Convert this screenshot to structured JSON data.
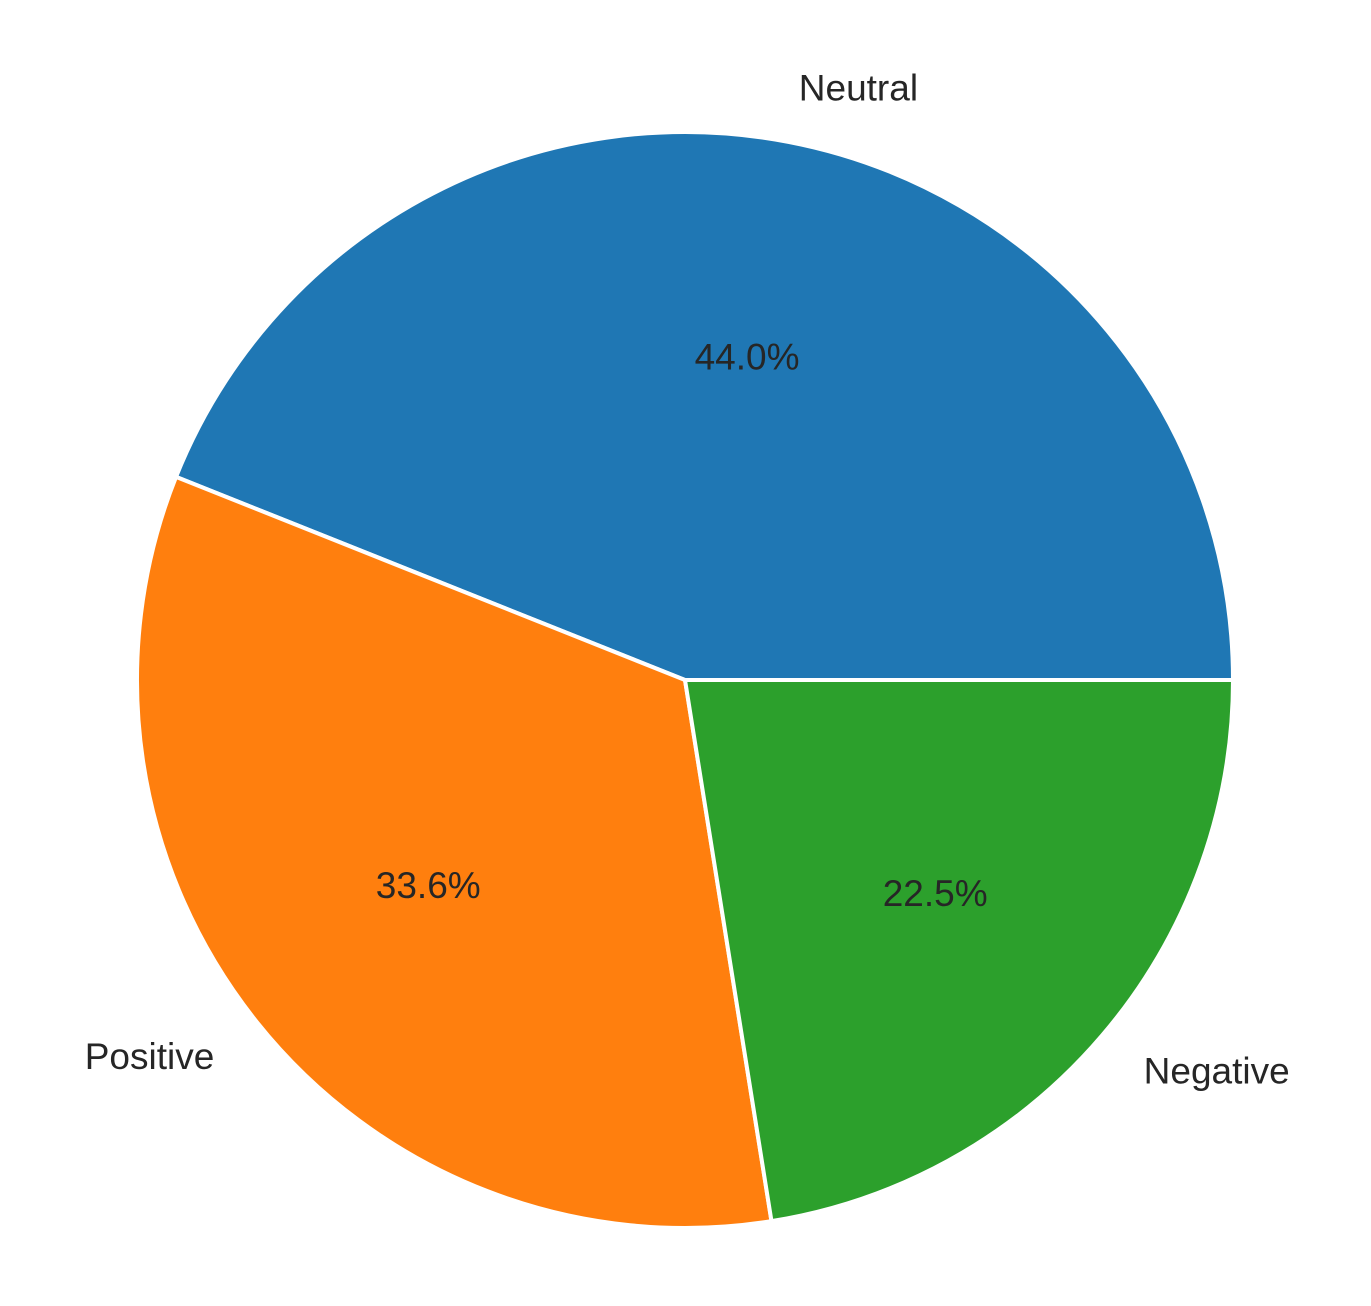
{
  "chart_data": {
    "type": "pie",
    "categories": [
      "Neutral",
      "Positive",
      "Negative"
    ],
    "values": [
      44.0,
      33.6,
      22.5
    ],
    "value_labels": [
      "44.0%",
      "33.6%",
      "22.5%"
    ],
    "colors": [
      "#1f77b4",
      "#ff7f0e",
      "#2ca02c"
    ],
    "start_angle_deg": 0,
    "direction": "counterclockwise",
    "title": ""
  }
}
